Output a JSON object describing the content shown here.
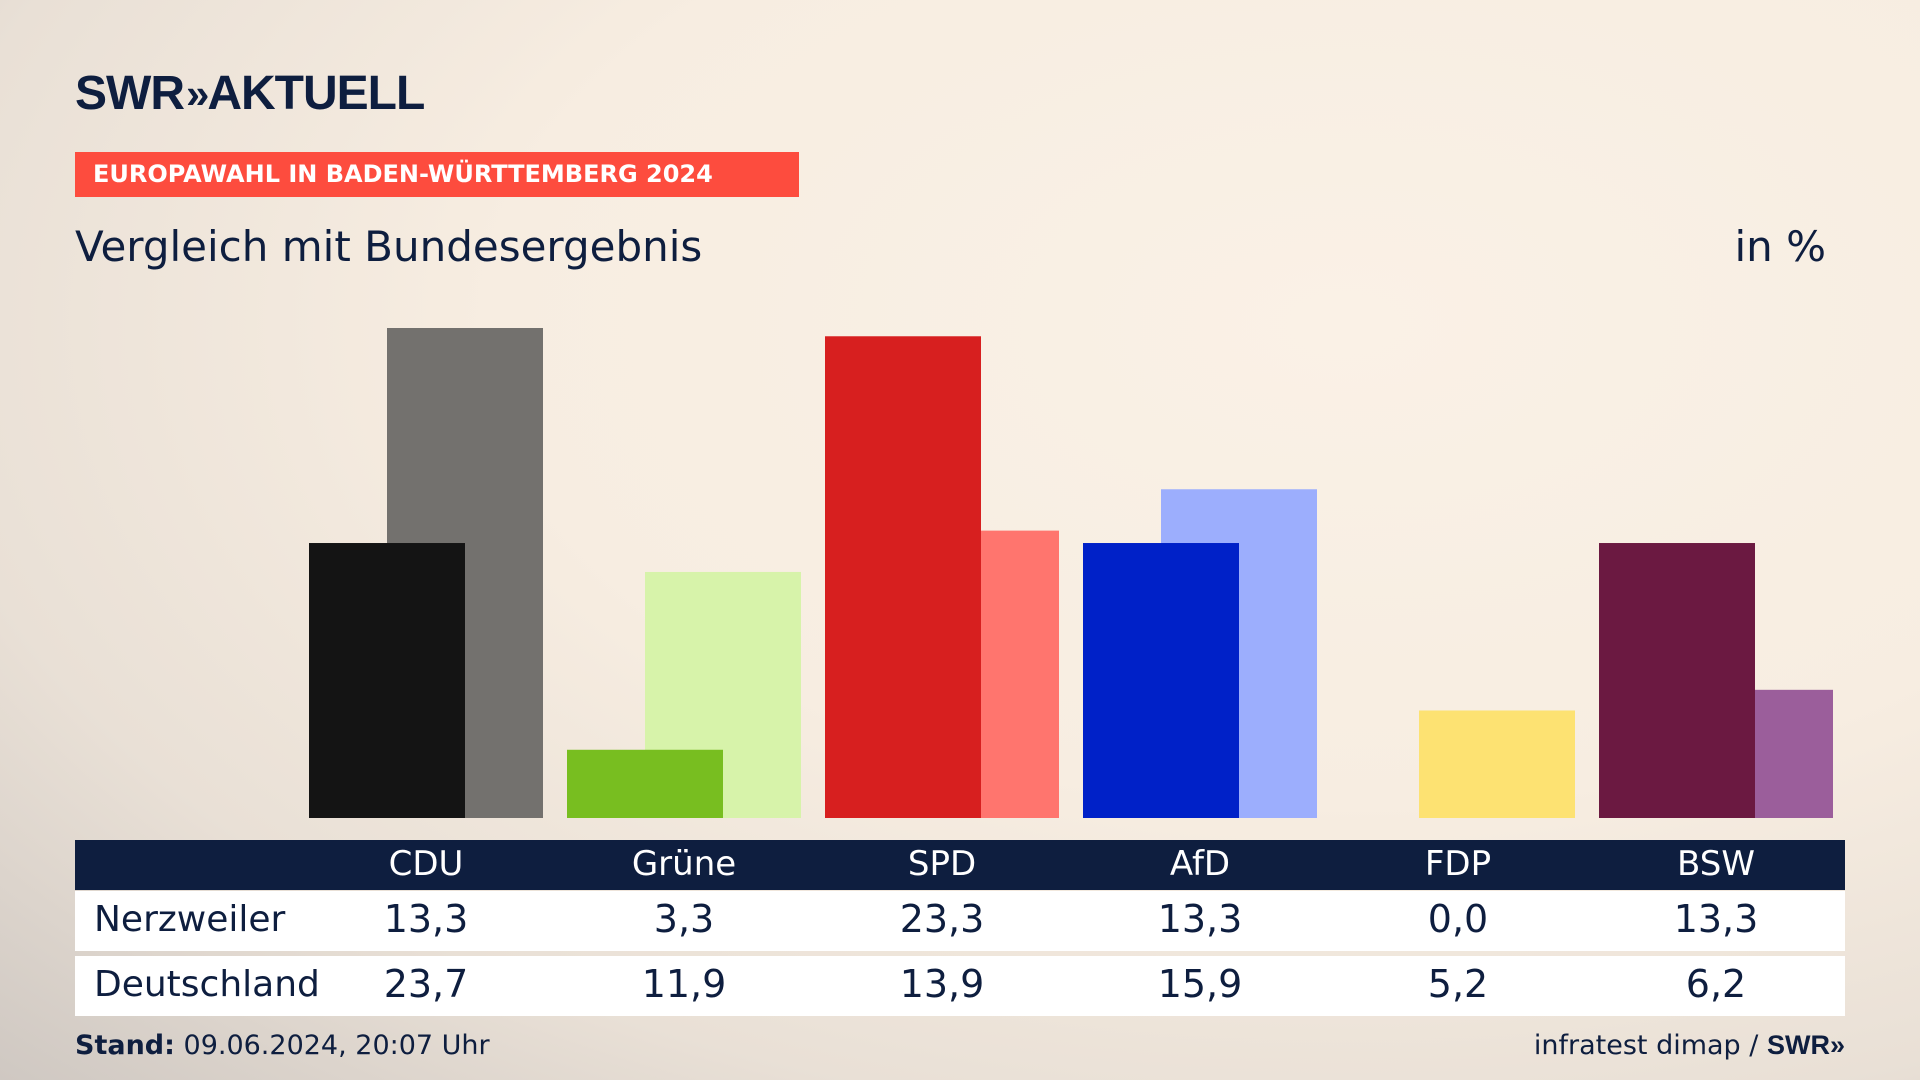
{
  "logo": {
    "text": "SWR",
    "chevrons": "»",
    "product": "AKTUELL"
  },
  "banner": "EUROPAWAHL IN BADEN-WÜRTTEMBERG 2024",
  "subtitle": "Vergleich mit Bundesergebnis",
  "unit": "in %",
  "chart_data": {
    "type": "bar",
    "categories": [
      "CDU",
      "Grüne",
      "SPD",
      "AfD",
      "FDP",
      "BSW"
    ],
    "series": [
      {
        "name": "Nerzweiler",
        "values": [
          13.3,
          3.3,
          23.3,
          13.3,
          0.0,
          13.3
        ]
      },
      {
        "name": "Deutschland",
        "values": [
          23.7,
          11.9,
          13.9,
          15.9,
          5.2,
          6.2
        ]
      }
    ],
    "colors_local": [
      "#141414",
      "#78be20",
      "#d71f1f",
      "#0021c8",
      "#fde272",
      "#6b1941"
    ],
    "colors_national": [
      "#73716e",
      "#d7f3aa",
      "#ff756e",
      "#9caefd",
      "#fde272",
      "#9b5e9b"
    ],
    "ylim": [
      0,
      24
    ]
  },
  "table": {
    "rows": [
      {
        "label": "Nerzweiler",
        "values": [
          "13,3",
          "3,3",
          "23,3",
          "13,3",
          "0,0",
          "13,3"
        ]
      },
      {
        "label": "Deutschland",
        "values": [
          "23,7",
          "11,9",
          "13,9",
          "15,9",
          "5,2",
          "6,2"
        ]
      }
    ]
  },
  "footer": {
    "stand_label": "Stand:",
    "stand_value": "09.06.2024, 20:07 Uhr",
    "source": "infratest dimap /",
    "source_logo": "SWR»"
  }
}
